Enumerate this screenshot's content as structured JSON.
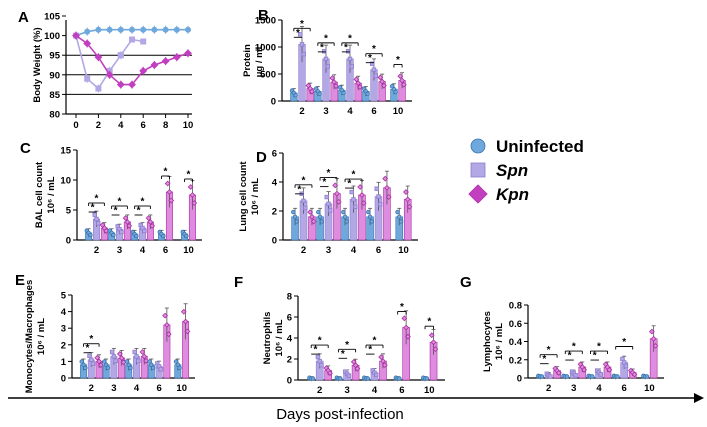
{
  "chart_data": [
    {
      "panel": "A",
      "type": "line",
      "ylabel": "Body Weight (%)",
      "ylim": [
        80,
        105
      ],
      "yticks": [
        80,
        85,
        90,
        95,
        100,
        105
      ],
      "gridlines": [
        85,
        90,
        95
      ],
      "x": [
        0,
        1,
        2,
        3,
        4,
        5,
        6,
        7,
        8,
        9,
        10
      ],
      "xticks": [
        0,
        2,
        4,
        6,
        8,
        10
      ],
      "series": [
        {
          "name": "Uninfected",
          "color": "#6fa8dc",
          "marker": "circle",
          "x": [
            0,
            1,
            2,
            3,
            4,
            5,
            6,
            7,
            8,
            9,
            10
          ],
          "values": [
            100,
            101,
            101.5,
            101.5,
            101.5,
            101.5,
            101.5,
            101.5,
            101.5,
            101.5,
            101.5
          ]
        },
        {
          "name": "Spn",
          "color": "#b4a7e5",
          "marker": "square",
          "x": [
            0,
            1,
            2,
            3,
            4
          ],
          "values": [
            100,
            89,
            86.5,
            91,
            95
          ]
        },
        {
          "name": "Kpn",
          "color": "#c23fc0",
          "marker": "diamond",
          "x": [
            0,
            1,
            2,
            3,
            4,
            5,
            6,
            7,
            8,
            9,
            10
          ],
          "values": [
            100,
            98,
            94.5,
            90,
            87.5,
            87.5,
            91,
            92.5,
            93.5,
            94.5,
            95.5
          ]
        }
      ],
      "extra_series_note": "Spn recovery",
      "spn_recovery": {
        "x": [
          4,
          5,
          6
        ],
        "values": [
          95,
          99,
          98.5
        ]
      }
    },
    {
      "panel": "B",
      "type": "bar",
      "ylabel": "Protein μg / mL",
      "ylim": [
        0,
        1500
      ],
      "yticks": [
        0,
        500,
        1000,
        1500
      ],
      "categories": [
        "2",
        "3",
        "4",
        "6",
        "10"
      ],
      "series": [
        {
          "name": "Uninfected",
          "values": [
            150,
            180,
            200,
            180,
            220
          ]
        },
        {
          "name": "Spn",
          "values": [
            1050,
            780,
            780,
            580,
            null
          ]
        },
        {
          "name": "Kpn",
          "values": [
            230,
            350,
            330,
            360,
            380
          ]
        }
      ],
      "sig_stars": [
        "*",
        "*",
        "*",
        "*",
        "*",
        "*",
        "*",
        "*",
        "*"
      ]
    },
    {
      "panel": "C",
      "type": "bar",
      "ylabel": "BAL cell count 10⁶ / mL",
      "ylim": [
        0,
        15
      ],
      "yticks": [
        0,
        5,
        10,
        15
      ],
      "categories": [
        "2",
        "3",
        "4",
        "6",
        "10"
      ],
      "series": [
        {
          "name": "Uninfected",
          "values": [
            1.2,
            1.2,
            1.0,
            1.0,
            1.0
          ]
        },
        {
          "name": "Spn",
          "values": [
            3.5,
            1.8,
            2.0,
            null,
            null
          ]
        },
        {
          "name": "Kpn",
          "values": [
            2.0,
            3.0,
            3.0,
            8.0,
            7.5
          ]
        }
      ],
      "sig_stars": [
        "*",
        "*",
        "*",
        "*",
        "*",
        "*",
        "*",
        "*",
        "*"
      ]
    },
    {
      "panel": "D",
      "type": "bar",
      "ylabel": "Lung cell count 10⁶ / mL",
      "ylim": [
        0,
        6
      ],
      "yticks": [
        0,
        2,
        4,
        6
      ],
      "categories": [
        "2",
        "3",
        "4",
        "6",
        "10"
      ],
      "series": [
        {
          "name": "Uninfected",
          "values": [
            1.6,
            1.6,
            1.6,
            1.6,
            1.6
          ]
        },
        {
          "name": "Spn",
          "values": [
            2.7,
            2.5,
            2.8,
            3.0,
            null
          ]
        },
        {
          "name": "Kpn",
          "values": [
            1.6,
            3.2,
            3.1,
            3.6,
            2.8
          ]
        }
      ],
      "sig_stars": [
        "*",
        "*",
        "*",
        "*",
        "*",
        "*"
      ]
    },
    {
      "panel": "E",
      "type": "bar",
      "ylabel": "Monocytes/Macrophages 10⁶ / mL",
      "ylim": [
        0,
        5
      ],
      "yticks": [
        0,
        1,
        2,
        3,
        4,
        5
      ],
      "categories": [
        "2",
        "3",
        "4",
        "6",
        "10"
      ],
      "series": [
        {
          "name": "Uninfected",
          "values": [
            0.8,
            0.8,
            0.8,
            0.8,
            0.8
          ]
        },
        {
          "name": "Spn",
          "values": [
            1.1,
            1.3,
            1.3,
            0.7,
            null
          ]
        },
        {
          "name": "Kpn",
          "values": [
            1.0,
            1.2,
            1.3,
            3.2,
            3.4
          ]
        }
      ],
      "sig_stars": [
        "*",
        "*"
      ]
    },
    {
      "panel": "F",
      "type": "bar",
      "ylabel": "Neutrophils 10⁶ / mL",
      "ylim": [
        0,
        8
      ],
      "yticks": [
        0,
        2,
        4,
        6,
        8
      ],
      "categories": [
        "2",
        "3",
        "4",
        "6",
        "10"
      ],
      "series": [
        {
          "name": "Uninfected",
          "values": [
            0.1,
            0.1,
            0.1,
            0.1,
            0.1
          ]
        },
        {
          "name": "Spn",
          "values": [
            1.8,
            0.6,
            0.7,
            null,
            null
          ]
        },
        {
          "name": "Kpn",
          "values": [
            0.9,
            1.4,
            1.8,
            5.0,
            3.6
          ]
        }
      ],
      "sig_stars": [
        "*",
        "*",
        "*",
        "*",
        "*",
        "*",
        "*",
        "*"
      ]
    },
    {
      "panel": "G",
      "type": "bar",
      "ylabel": "Lymphocytes 10⁶ / mL",
      "ylim": [
        0,
        0.8
      ],
      "yticks": [
        0.0,
        0.2,
        0.4,
        0.6,
        0.8
      ],
      "categories": [
        "2",
        "3",
        "4",
        "6",
        "10"
      ],
      "series": [
        {
          "name": "Uninfected",
          "values": [
            0.01,
            0.01,
            0.01,
            0.01,
            0.01
          ]
        },
        {
          "name": "Spn",
          "values": [
            0.03,
            0.05,
            0.06,
            0.17,
            null
          ]
        },
        {
          "name": "Kpn",
          "values": [
            0.08,
            0.12,
            0.12,
            0.06,
            0.43
          ]
        }
      ],
      "sig_stars": [
        "*",
        "*",
        "*",
        "*",
        "*",
        "*",
        "*"
      ]
    }
  ],
  "legend": [
    {
      "label": "Uninfected",
      "marker": "circle",
      "color": "#6fa8dc",
      "italic": false
    },
    {
      "label": "Spn",
      "marker": "square",
      "color": "#b4a7e5",
      "italic": true
    },
    {
      "label": "Kpn",
      "marker": "diamond",
      "color": "#c23fc0",
      "italic": true
    }
  ],
  "x_title": "Days post-infection",
  "colors": {
    "uninfected": "#6fa8dc",
    "spn": "#b4a7e5",
    "kpn": "#df8be0",
    "kpn_line": "#c23fc0",
    "axis": "#000000"
  }
}
